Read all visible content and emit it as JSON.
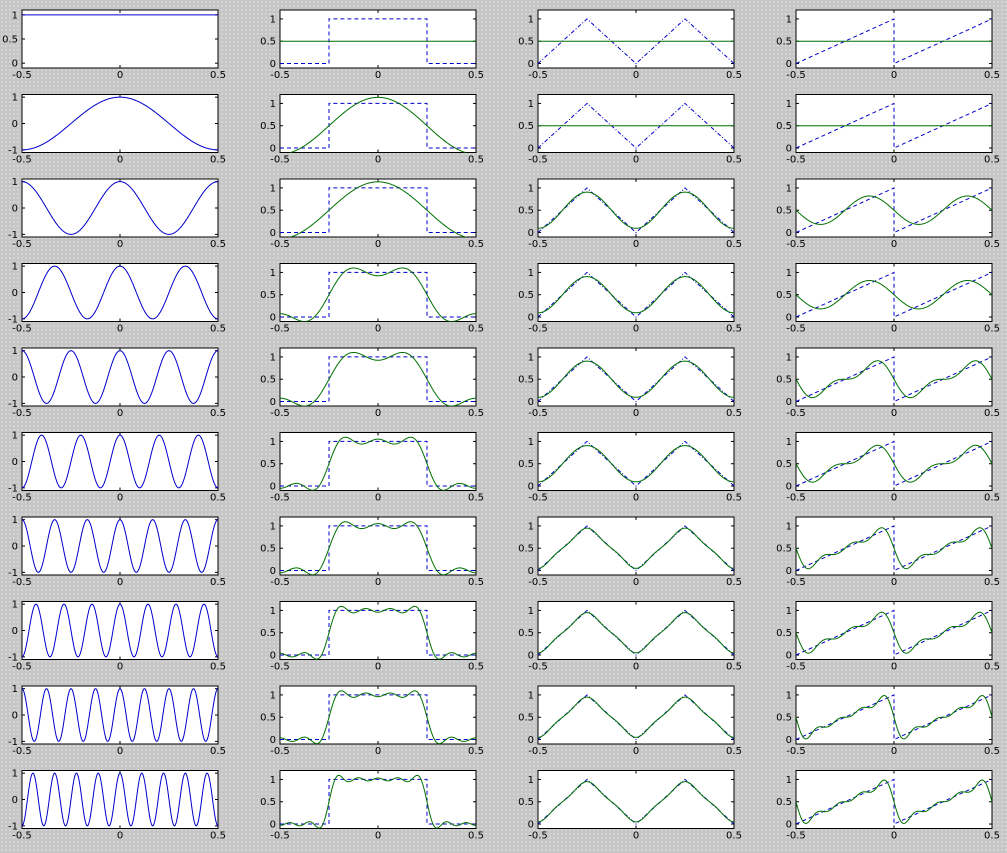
{
  "figure": {
    "x_ticks": [
      "-0.5",
      "0",
      "0.5"
    ],
    "colors": {
      "basis": "#0000cc",
      "target": "#0000cc",
      "approx": "#007000"
    }
  },
  "chart_data": [
    {
      "type": "line",
      "column": "cosine basis functions",
      "xlim": [
        -0.5,
        0.5
      ],
      "row_series": "cos(2*pi*k*x), k = 0..9",
      "rows": [
        {
          "k": 0,
          "ylim": [
            -0.1,
            1.1
          ],
          "y_ticks": [
            "0",
            "0.5",
            "1"
          ]
        },
        {
          "k": 1,
          "ylim": [
            -1.1,
            1.1
          ],
          "y_ticks": [
            "-1",
            "0",
            "1"
          ]
        },
        {
          "k": 2,
          "ylim": [
            -1.1,
            1.1
          ],
          "y_ticks": [
            "-1",
            "0",
            "1"
          ]
        },
        {
          "k": 3,
          "ylim": [
            -1.1,
            1.1
          ],
          "y_ticks": [
            "-1",
            "0",
            "1"
          ]
        },
        {
          "k": 4,
          "ylim": [
            -1.1,
            1.1
          ],
          "y_ticks": [
            "-1",
            "0",
            "1"
          ]
        },
        {
          "k": 5,
          "ylim": [
            -1.1,
            1.1
          ],
          "y_ticks": [
            "-1",
            "0",
            "1"
          ]
        },
        {
          "k": 6,
          "ylim": [
            -1.1,
            1.1
          ],
          "y_ticks": [
            "-1",
            "0",
            "1"
          ]
        },
        {
          "k": 7,
          "ylim": [
            -1.1,
            1.1
          ],
          "y_ticks": [
            "-1",
            "0",
            "1"
          ]
        },
        {
          "k": 8,
          "ylim": [
            -1.1,
            1.1
          ],
          "y_ticks": [
            "-1",
            "0",
            "1"
          ]
        },
        {
          "k": 9,
          "ylim": [
            -1.1,
            1.1
          ],
          "y_ticks": [
            "-1",
            "0",
            "1"
          ]
        }
      ]
    },
    {
      "type": "line",
      "column": "square wave approximation",
      "xlim": [
        -0.5,
        0.5
      ],
      "ylim": [
        -0.1,
        1.2
      ],
      "y_ticks": [
        "0",
        "0.5",
        "1"
      ],
      "target": {
        "style": "dashed",
        "x": [
          -0.5,
          -0.25,
          -0.25,
          0.25,
          0.25,
          0.5
        ],
        "y": [
          0,
          0,
          1,
          1,
          0,
          0
        ]
      },
      "approximation": {
        "style": "solid",
        "harmonics_per_row": [
          0,
          1,
          2,
          3,
          4,
          5,
          6,
          7,
          8,
          9
        ]
      }
    },
    {
      "type": "line",
      "column": "triangle wave approximation",
      "xlim": [
        -0.5,
        0.5
      ],
      "ylim": [
        -0.1,
        1.2
      ],
      "y_ticks": [
        "0",
        "0.5",
        "1"
      ],
      "target": {
        "style": "dashed",
        "x": [
          -0.5,
          -0.25,
          0,
          0.25,
          0.5
        ],
        "y": [
          0,
          1,
          0,
          1,
          0
        ]
      },
      "approximation": {
        "style": "solid",
        "harmonics_per_row": [
          0,
          1,
          2,
          3,
          4,
          5,
          6,
          7,
          8,
          9
        ]
      }
    },
    {
      "type": "line",
      "column": "sawtooth wave approximation",
      "xlim": [
        -0.5,
        0.5
      ],
      "ylim": [
        -0.1,
        1.2
      ],
      "y_ticks": [
        "0",
        "0.5",
        "1"
      ],
      "target": {
        "style": "dashed",
        "x": [
          -0.5,
          0,
          0,
          0.5
        ],
        "y": [
          0,
          1,
          0,
          1
        ]
      },
      "approximation": {
        "style": "solid",
        "harmonics_per_row": [
          0,
          1,
          2,
          3,
          4,
          5,
          6,
          7,
          8,
          9
        ]
      }
    }
  ]
}
